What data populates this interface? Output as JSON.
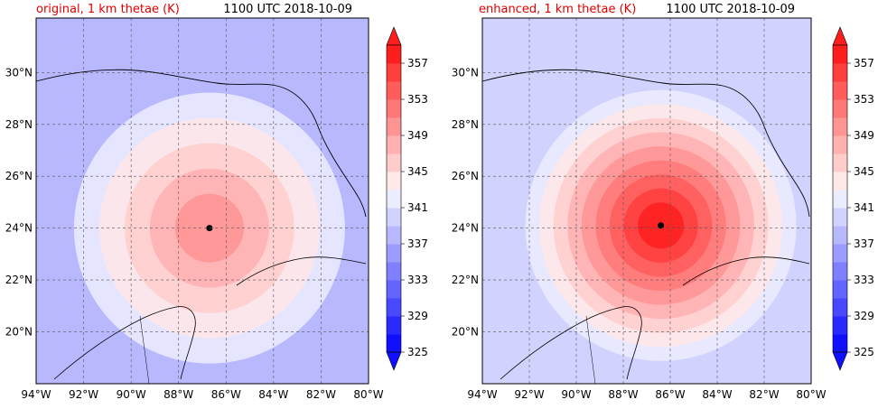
{
  "panels": [
    {
      "title": "original, 1 km thetae (K)",
      "time": "1100 UTC 2018-10-09",
      "storm_center": {
        "lon": -86.7,
        "lat": 24.0
      },
      "eye_intensity": 351
    },
    {
      "title": "enhanced, 1 km thetae (K)",
      "time": "1100 UTC 2018-10-09",
      "storm_center": {
        "lon": -86.4,
        "lat": 24.1
      },
      "eye_intensity": 359
    }
  ],
  "axes": {
    "lon_ticks": [
      "94°W",
      "92°W",
      "90°W",
      "88°W",
      "86°W",
      "84°W",
      "82°W",
      "80°W"
    ],
    "lon_values": [
      -94,
      -92,
      -90,
      -88,
      -86,
      -84,
      -82,
      -80
    ],
    "lat_ticks": [
      "20°N",
      "22°N",
      "24°N",
      "26°N",
      "28°N",
      "30°N"
    ],
    "lat_values": [
      20,
      22,
      24,
      26,
      28,
      30
    ],
    "lon_range": [
      -94,
      -80
    ],
    "lat_range": [
      18.0,
      32.1
    ],
    "grid": true
  },
  "colorbar": {
    "labels": [
      "325",
      "329",
      "333",
      "337",
      "341",
      "345",
      "349",
      "353",
      "357"
    ],
    "range": [
      325,
      359
    ],
    "colors": [
      "#1010ff",
      "#2a2aff",
      "#4848ff",
      "#6464ff",
      "#8080ff",
      "#9c9cff",
      "#b8b8ff",
      "#d2d2ff",
      "#ececff",
      "#ffe8e8",
      "#ffcccc",
      "#ffb0b0",
      "#ff9494",
      "#ff7878",
      "#ff5c5c",
      "#ff3e3e",
      "#ff1e1e"
    ],
    "extend": "both"
  },
  "colors": {
    "title_accent": "#e00000",
    "coast": "#000000",
    "grid": "#555555"
  }
}
